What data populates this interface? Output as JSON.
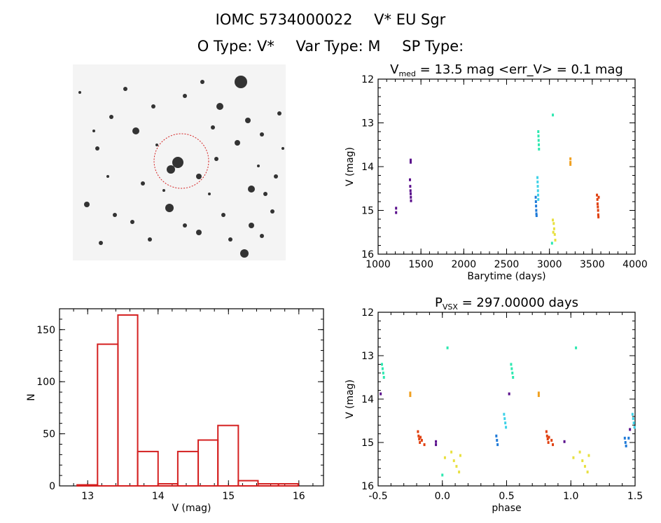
{
  "header": {
    "id_label": "IOMC 5734000022",
    "star_name": "V* EU Sgr",
    "otype": "O Type: V*",
    "vartype": "Var Type: M",
    "sptype": "SP Type:"
  },
  "colors": {
    "hist": "#d42020",
    "marker_circle": "#d42020",
    "image_bg": "#f4f4f4",
    "star": "#111111"
  },
  "chart_data": [
    {
      "type": "scatter",
      "title_main": "V",
      "title_sub": "med",
      "title_rest": " = 13.5 mag <err_V> = 0.1 mag",
      "xlabel": "Barytime (days)",
      "ylabel": "V (mag)",
      "xlim": [
        1000,
        4000
      ],
      "ylim": [
        16,
        12
      ],
      "xticks": [
        1000,
        1500,
        2000,
        2500,
        3000,
        3500,
        4000
      ],
      "yticks": [
        12,
        13,
        14,
        15,
        16
      ],
      "series": [
        {
          "color": "#5a0f8c",
          "points": [
            [
              1210,
              14.95
            ],
            [
              1210,
              15.05
            ],
            [
              1380,
              13.85
            ],
            [
              1380,
              13.9
            ],
            [
              1372,
              14.3
            ],
            [
              1375,
              14.45
            ],
            [
              1378,
              14.55
            ],
            [
              1380,
              14.62
            ],
            [
              1382,
              14.7
            ],
            [
              1384,
              14.78
            ]
          ]
        },
        {
          "color": "#1e7ad8",
          "points": [
            [
              2840,
              14.7
            ],
            [
              2842,
              14.8
            ],
            [
              2844,
              14.9
            ],
            [
              2846,
              15.0
            ],
            [
              2848,
              15.08
            ],
            [
              2850,
              15.12
            ]
          ]
        },
        {
          "color": "#3fd2e8",
          "points": [
            [
              2860,
              14.25
            ],
            [
              2862,
              14.35
            ],
            [
              2864,
              14.45
            ],
            [
              2866,
              14.55
            ],
            [
              2868,
              14.65
            ],
            [
              2870,
              14.75
            ]
          ]
        },
        {
          "color": "#2ee8b0",
          "points": [
            [
              2870,
              13.2
            ],
            [
              2872,
              13.3
            ],
            [
              2874,
              13.4
            ],
            [
              2876,
              13.5
            ],
            [
              2878,
              13.6
            ],
            [
              3040,
              12.82
            ],
            [
              3030,
              15.75
            ]
          ]
        },
        {
          "color": "#e8e040",
          "points": [
            [
              3040,
              15.22
            ],
            [
              3050,
              15.3
            ],
            [
              3055,
              15.42
            ],
            [
              3062,
              15.55
            ],
            [
              3068,
              15.68
            ],
            [
              3045,
              15.5
            ]
          ]
        },
        {
          "color": "#f0a020",
          "points": [
            [
              3245,
              13.82
            ],
            [
              3245,
              13.9
            ],
            [
              3245,
              13.95
            ]
          ]
        },
        {
          "color": "#e04010",
          "points": [
            [
              3555,
              14.65
            ],
            [
              3560,
              14.75
            ],
            [
              3562,
              14.85
            ],
            [
              3565,
              14.92
            ],
            [
              3568,
              15.0
            ],
            [
              3570,
              15.1
            ],
            [
              3572,
              15.15
            ],
            [
              3575,
              14.7
            ]
          ]
        }
      ]
    },
    {
      "type": "bar",
      "xlabel": "V (mag)",
      "ylabel": "N",
      "xlim": [
        12.6,
        16.35
      ],
      "ylim": [
        0,
        170
      ],
      "xticks": [
        13,
        14,
        15,
        16
      ],
      "yticks": [
        0,
        50,
        100,
        150
      ],
      "bin_edges": [
        12.85,
        13.14,
        13.43,
        13.71,
        14.0,
        14.28,
        14.57,
        14.85,
        15.14,
        15.42,
        15.71,
        15.99
      ],
      "values": [
        1,
        136,
        164,
        33,
        2,
        33,
        44,
        58,
        5,
        2,
        2
      ]
    },
    {
      "type": "scatter",
      "title_main": "P",
      "title_sub": "VSX",
      "title_rest": " = 297.00000 days",
      "xlabel": "phase",
      "ylabel": "V (mag)",
      "xlim": [
        -0.5,
        1.5
      ],
      "ylim": [
        16,
        12
      ],
      "xticks": [
        -0.5,
        0.0,
        0.5,
        1.0,
        1.5
      ],
      "xtick_labels": [
        "-0.5",
        "0.0",
        "0.5",
        "1.0",
        "1.5"
      ],
      "yticks": [
        12,
        13,
        14,
        15,
        16
      ],
      "series": [
        {
          "color": "#2ee8b0",
          "points": [
            [
              -0.47,
              13.2
            ],
            [
              -0.465,
              13.3
            ],
            [
              -0.46,
              13.4
            ],
            [
              -0.455,
              13.5
            ],
            [
              0.535,
              13.2
            ],
            [
              0.54,
              13.3
            ],
            [
              0.545,
              13.4
            ],
            [
              0.55,
              13.5
            ],
            [
              0.04,
              12.82
            ],
            [
              1.04,
              12.82
            ],
            [
              0.0,
              15.75
            ]
          ]
        },
        {
          "color": "#3fd2e8",
          "points": [
            [
              0.48,
              14.35
            ],
            [
              0.485,
              14.45
            ],
            [
              0.49,
              14.55
            ],
            [
              0.495,
              14.65
            ],
            [
              1.48,
              14.35
            ],
            [
              1.485,
              14.45
            ],
            [
              1.49,
              14.55
            ],
            [
              1.495,
              14.65
            ]
          ]
        },
        {
          "color": "#1e7ad8",
          "points": [
            [
              0.42,
              14.85
            ],
            [
              0.425,
              14.95
            ],
            [
              0.43,
              15.05
            ],
            [
              1.42,
              14.9
            ],
            [
              1.425,
              15.0
            ],
            [
              1.43,
              15.08
            ],
            [
              1.45,
              14.9
            ]
          ]
        },
        {
          "color": "#5a0f8c",
          "points": [
            [
              -0.48,
              13.88
            ],
            [
              0.52,
              13.88
            ],
            [
              -0.05,
              14.98
            ],
            [
              -0.05,
              15.05
            ],
            [
              0.95,
              14.98
            ],
            [
              1.46,
              14.7
            ]
          ]
        },
        {
          "color": "#f0a020",
          "points": [
            [
              -0.25,
              13.86
            ],
            [
              -0.25,
              13.92
            ],
            [
              0.75,
              13.86
            ],
            [
              0.75,
              13.92
            ]
          ]
        },
        {
          "color": "#e04010",
          "points": [
            [
              -0.19,
              14.75
            ],
            [
              -0.185,
              14.85
            ],
            [
              -0.18,
              14.92
            ],
            [
              -0.175,
              15.0
            ],
            [
              -0.17,
              14.88
            ],
            [
              -0.16,
              14.95
            ],
            [
              -0.14,
              15.05
            ],
            [
              0.81,
              14.75
            ],
            [
              0.815,
              14.85
            ],
            [
              0.82,
              14.92
            ],
            [
              0.825,
              15.0
            ],
            [
              0.83,
              14.88
            ],
            [
              0.85,
              14.95
            ],
            [
              0.86,
              15.05
            ]
          ]
        },
        {
          "color": "#e8e040",
          "points": [
            [
              0.07,
              15.22
            ],
            [
              0.09,
              15.42
            ],
            [
              0.11,
              15.55
            ],
            [
              0.13,
              15.68
            ],
            [
              0.14,
              15.3
            ],
            [
              1.07,
              15.22
            ],
            [
              1.09,
              15.42
            ],
            [
              1.11,
              15.55
            ],
            [
              1.13,
              15.68
            ],
            [
              1.14,
              15.3
            ],
            [
              0.02,
              15.35
            ],
            [
              1.02,
              15.35
            ]
          ]
        }
      ]
    }
  ]
}
